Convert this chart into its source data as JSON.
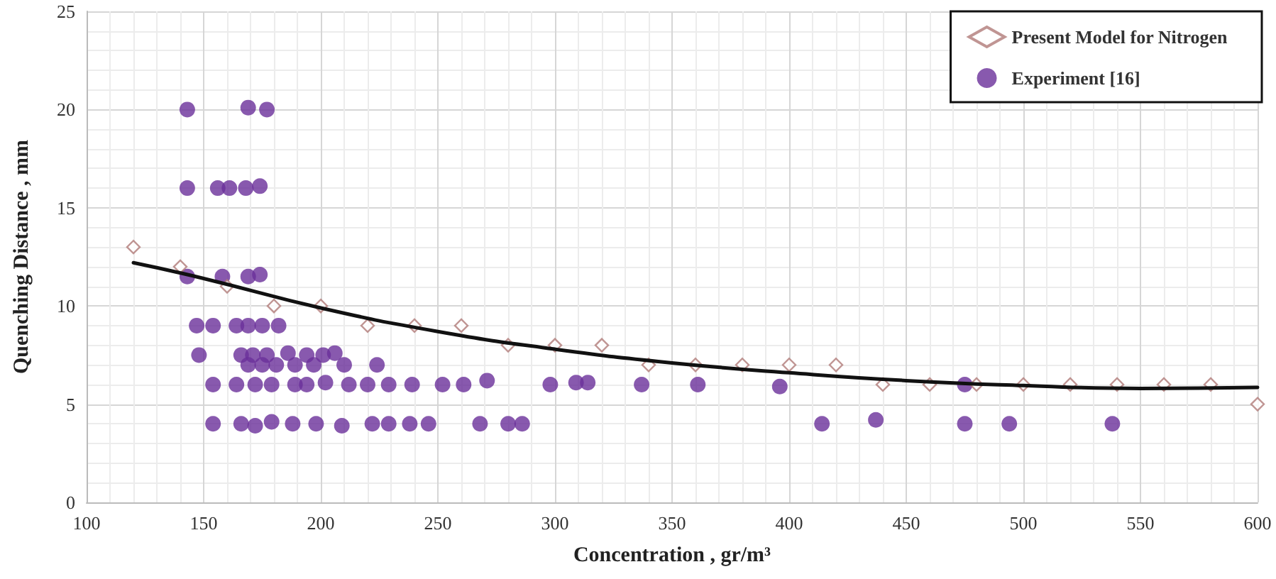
{
  "chart_data": {
    "type": "scatter",
    "xlabel": "Concentration , gr/m³",
    "ylabel": "Quenching Distance , mm",
    "xlim": [
      100,
      600
    ],
    "xticks": [
      100,
      150,
      200,
      250,
      300,
      350,
      400,
      450,
      500,
      550,
      600
    ],
    "ylim": [
      0,
      25
    ],
    "yticks": [
      0,
      5,
      10,
      15,
      20,
      25
    ],
    "grid": true,
    "legend": "top right",
    "series": [
      {
        "name": "Present Model for Nitrogen",
        "marker": "diamond",
        "color": "#b07a78",
        "x": [
          120,
          140,
          160,
          180,
          200,
          220,
          240,
          260,
          280,
          300,
          320,
          340,
          360,
          380,
          400,
          420,
          440,
          460,
          480,
          500,
          520,
          540,
          560,
          580,
          600
        ],
        "values": [
          13,
          12,
          11,
          10,
          10,
          9,
          9,
          9,
          8,
          8,
          8,
          7,
          7,
          7,
          7,
          7,
          6,
          6,
          6,
          6,
          6,
          6,
          6,
          6,
          5
        ]
      },
      {
        "name": "Experiment [16]",
        "marker": "circle",
        "color": "#6a2f9a",
        "x": [
          143,
          169,
          177,
          143,
          156,
          161,
          168,
          174,
          143,
          158,
          169,
          174,
          147,
          154,
          164,
          169,
          175,
          182,
          148,
          166,
          171,
          177,
          186,
          194,
          201,
          206,
          169,
          175,
          181,
          189,
          197,
          210,
          224,
          154,
          164,
          172,
          179,
          189,
          194,
          202,
          212,
          220,
          229,
          239,
          252,
          261,
          271,
          298,
          309,
          314,
          337,
          361,
          396,
          475,
          154,
          166,
          172,
          179,
          188,
          198,
          209,
          222,
          229,
          238,
          246,
          268,
          280,
          286,
          414,
          437,
          475,
          494,
          538
        ],
        "values": [
          20,
          20.1,
          20,
          16,
          16,
          16,
          16,
          16.1,
          11.5,
          11.5,
          11.5,
          11.6,
          9,
          9,
          9,
          9,
          9,
          9,
          7.5,
          7.5,
          7.5,
          7.5,
          7.6,
          7.5,
          7.5,
          7.6,
          7,
          7,
          7,
          7,
          7,
          7,
          7,
          6,
          6,
          6,
          6,
          6,
          6,
          6.1,
          6,
          6,
          6,
          6,
          6,
          6,
          6.2,
          6,
          6.1,
          6.1,
          6,
          6,
          5.9,
          6,
          4,
          4,
          3.9,
          4.1,
          4,
          4,
          3.9,
          4,
          4,
          4,
          4,
          4,
          4,
          4,
          4,
          4.2,
          4,
          4,
          4
        ]
      },
      {
        "type": "line",
        "marker": "none",
        "line_style": "solid",
        "color": "#111111",
        "x": [
          120,
          150,
          200,
          250,
          300,
          350,
          400,
          450,
          500,
          550,
          600
        ],
        "values": [
          12.2,
          11.4,
          9.9,
          8.7,
          7.8,
          7.1,
          6.6,
          6.2,
          5.95,
          5.8,
          5.85
        ]
      }
    ]
  }
}
